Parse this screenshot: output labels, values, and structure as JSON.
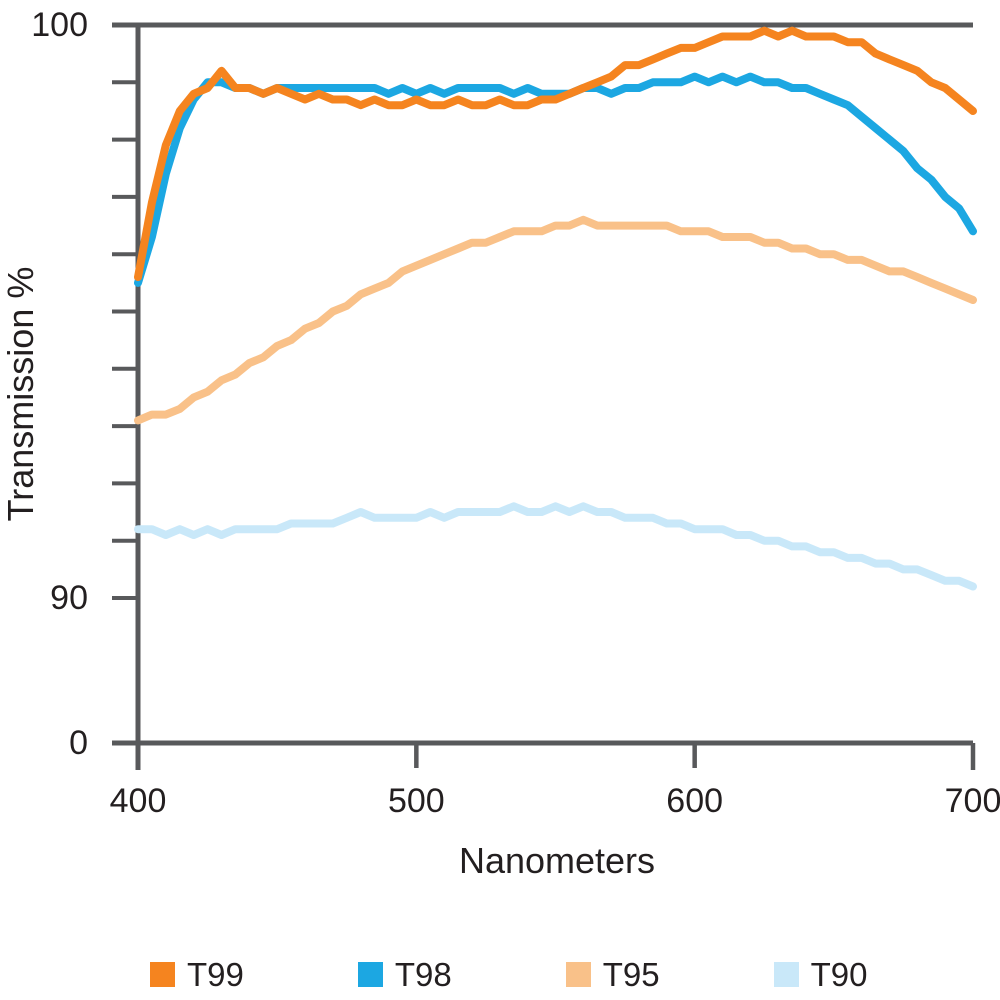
{
  "chart_data": {
    "type": "line",
    "title": "",
    "xlabel": "Nanometers",
    "ylabel": "Transmission %",
    "x_axis": {
      "ticks": [
        400,
        500,
        600,
        700
      ],
      "range": [
        400,
        700
      ]
    },
    "y_axis": {
      "labeled_ticks": [
        100,
        90,
        0
      ],
      "minor_ticks": [
        99,
        98,
        97,
        96,
        95,
        94,
        93,
        92,
        91
      ],
      "main_range": [
        90,
        100
      ],
      "broken_axis": "compressed segment between 0 and 90",
      "unit": "%"
    },
    "axis_color": "#58595B",
    "text_color": "#231F20",
    "grid": false,
    "legend_position": "bottom",
    "x_start": 400,
    "x_step": 5,
    "series": [
      {
        "name": "T90",
        "color": "#C9E8F9",
        "values": [
          91.2,
          91.2,
          91.1,
          91.2,
          91.1,
          91.2,
          91.1,
          91.2,
          91.2,
          91.2,
          91.2,
          91.3,
          91.3,
          91.3,
          91.3,
          91.4,
          91.5,
          91.4,
          91.4,
          91.4,
          91.4,
          91.5,
          91.4,
          91.5,
          91.5,
          91.5,
          91.5,
          91.6,
          91.5,
          91.5,
          91.6,
          91.5,
          91.6,
          91.5,
          91.5,
          91.4,
          91.4,
          91.4,
          91.3,
          91.3,
          91.2,
          91.2,
          91.2,
          91.1,
          91.1,
          91.0,
          91.0,
          90.9,
          90.9,
          90.8,
          90.8,
          90.7,
          90.7,
          90.6,
          90.6,
          90.5,
          90.5,
          90.4,
          90.3,
          90.3,
          90.2
        ]
      },
      {
        "name": "T95",
        "color": "#F9C189",
        "values": [
          93.1,
          93.2,
          93.2,
          93.3,
          93.5,
          93.6,
          93.8,
          93.9,
          94.1,
          94.2,
          94.4,
          94.5,
          94.7,
          94.8,
          95.0,
          95.1,
          95.3,
          95.4,
          95.5,
          95.7,
          95.8,
          95.9,
          96.0,
          96.1,
          96.2,
          96.2,
          96.3,
          96.4,
          96.4,
          96.4,
          96.5,
          96.5,
          96.6,
          96.5,
          96.5,
          96.5,
          96.5,
          96.5,
          96.5,
          96.4,
          96.4,
          96.4,
          96.3,
          96.3,
          96.3,
          96.2,
          96.2,
          96.1,
          96.1,
          96.0,
          96.0,
          95.9,
          95.9,
          95.8,
          95.7,
          95.7,
          95.6,
          95.5,
          95.4,
          95.3,
          95.2
        ]
      },
      {
        "name": "T98",
        "color": "#1CA7E2",
        "values": [
          95.5,
          96.3,
          97.4,
          98.2,
          98.7,
          99.0,
          99.0,
          98.9,
          98.9,
          98.8,
          98.9,
          98.9,
          98.9,
          98.9,
          98.9,
          98.9,
          98.9,
          98.9,
          98.8,
          98.9,
          98.8,
          98.9,
          98.8,
          98.9,
          98.9,
          98.9,
          98.9,
          98.8,
          98.9,
          98.8,
          98.8,
          98.8,
          98.9,
          98.9,
          98.8,
          98.9,
          98.9,
          99.0,
          99.0,
          99.0,
          99.1,
          99.0,
          99.1,
          99.0,
          99.1,
          99.0,
          99.0,
          98.9,
          98.9,
          98.8,
          98.7,
          98.6,
          98.4,
          98.2,
          98.0,
          97.8,
          97.5,
          97.3,
          97.0,
          96.8,
          96.4
        ]
      },
      {
        "name": "T99",
        "color": "#F5841F",
        "values": [
          95.6,
          96.9,
          97.9,
          98.5,
          98.8,
          98.9,
          99.2,
          98.9,
          98.9,
          98.8,
          98.9,
          98.8,
          98.7,
          98.8,
          98.7,
          98.7,
          98.6,
          98.7,
          98.6,
          98.6,
          98.7,
          98.6,
          98.6,
          98.7,
          98.6,
          98.6,
          98.7,
          98.6,
          98.6,
          98.7,
          98.7,
          98.8,
          98.9,
          99.0,
          99.1,
          99.3,
          99.3,
          99.4,
          99.5,
          99.6,
          99.6,
          99.7,
          99.8,
          99.8,
          99.8,
          99.9,
          99.8,
          99.9,
          99.8,
          99.8,
          99.8,
          99.7,
          99.7,
          99.5,
          99.4,
          99.3,
          99.2,
          99.0,
          98.9,
          98.7,
          98.5
        ]
      }
    ],
    "legend": [
      {
        "label": "T99",
        "color": "#F5841F"
      },
      {
        "label": "T98",
        "color": "#1CA7E2"
      },
      {
        "label": "T95",
        "color": "#F9C189"
      },
      {
        "label": "T90",
        "color": "#C9E8F9"
      }
    ]
  }
}
